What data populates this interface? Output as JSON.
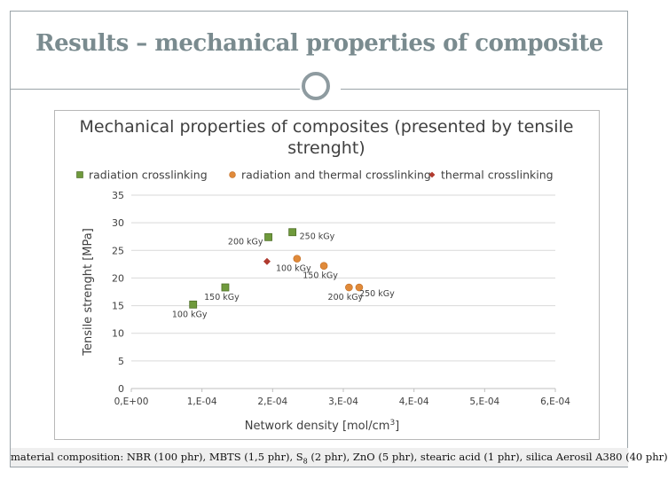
{
  "slide": {
    "title": "Results – mechanical properties of composite",
    "caption_parts": [
      "material composition: NBR (100 phr), MBTS (1,5 phr), S",
      "8",
      " (2 phr), ZnO (5 phr), stearic acid (1 phr), silica Aerosil A380 (40 phr)"
    ]
  },
  "colors": {
    "title": "#7a8b8f",
    "radiation": "#6f9a3c",
    "radiation_thermal": "#e08a3a",
    "thermal": "#b03a2e",
    "axis_text": "#404040",
    "grid": "#d9d9d9"
  },
  "chart_data": {
    "type": "scatter",
    "title": "Mechanical properties of composites (presented by tensile strenght)",
    "title_lines": [
      "Mechanical properties of composites (presented by tensile",
      "strenght)"
    ],
    "xlabel": "Network density [mol/cm3]",
    "xlabel_parts": [
      "Network density [mol/cm",
      "3",
      "]"
    ],
    "ylabel": "Tensile strenght [MPa]",
    "xlim": [
      0,
      0.0006
    ],
    "ylim": [
      0,
      35
    ],
    "xticks": [
      0,
      0.0001,
      0.0002,
      0.0003,
      0.0004,
      0.0005,
      0.0006
    ],
    "xtick_labels": [
      "0,E+00",
      "1,E-04",
      "2,E-04",
      "3,E-04",
      "4,E-04",
      "5,E-04",
      "6,E-04"
    ],
    "yticks": [
      0,
      5,
      10,
      15,
      20,
      25,
      30,
      35
    ],
    "ytick_labels": [
      "0",
      "5",
      "10",
      "15",
      "20",
      "25",
      "30",
      "35"
    ],
    "legend_position": "top",
    "series": [
      {
        "name": "radiation crosslinking",
        "marker": "square",
        "color": "#6f9a3c",
        "points": [
          {
            "x": 8.75e-05,
            "y": 15.2,
            "label": "100 kGy",
            "label_pos": "below"
          },
          {
            "x": 0.000133,
            "y": 18.3,
            "label": "150 kGy",
            "label_pos": "below"
          },
          {
            "x": 0.000194,
            "y": 27.4,
            "label": "200 kGy",
            "label_pos": "left"
          },
          {
            "x": 0.000228,
            "y": 28.3,
            "label": "250 kGy",
            "label_pos": "right"
          }
        ]
      },
      {
        "name": "radiation and thermal crosslinking",
        "marker": "circle",
        "color": "#e08a3a",
        "points": [
          {
            "x": 0.0002345,
            "y": 23.5,
            "label": "100 kGy",
            "label_pos": "below"
          },
          {
            "x": 0.0002725,
            "y": 22.2,
            "label": "150 kGy",
            "label_pos": "below"
          },
          {
            "x": 0.000308,
            "y": 18.3,
            "label": "200 kGy",
            "label_pos": "below"
          },
          {
            "x": 0.0003225,
            "y": 18.3,
            "label": "250 kGy",
            "label_pos": "belowright"
          }
        ]
      },
      {
        "name": "thermal crosslinking",
        "marker": "diamond",
        "color": "#b03a2e",
        "points": [
          {
            "x": 0.000192,
            "y": 23.0,
            "label": "",
            "label_pos": ""
          }
        ]
      }
    ]
  }
}
